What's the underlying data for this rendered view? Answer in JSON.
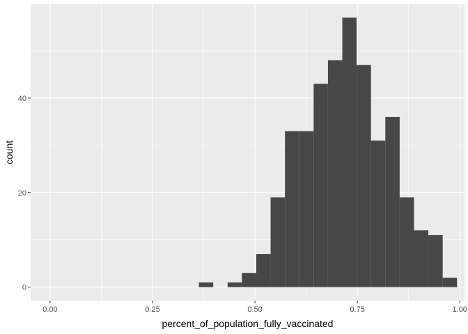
{
  "chart_data": {
    "type": "bar",
    "subtype": "histogram",
    "title": "",
    "xlabel": "percent_of_population_fully_vaccinated",
    "ylabel": "count",
    "xlim": [
      -0.0475,
      1.0115
    ],
    "ylim": [
      -2.85,
      59.85
    ],
    "x_ticks": [
      {
        "value": 0.0,
        "label": "0.00"
      },
      {
        "value": 0.25,
        "label": "0.25"
      },
      {
        "value": 0.5,
        "label": "0.50"
      },
      {
        "value": 0.75,
        "label": "0.75"
      },
      {
        "value": 1.0,
        "label": "1.00"
      }
    ],
    "y_ticks": [
      {
        "value": 0,
        "label": "0"
      },
      {
        "value": 20,
        "label": "20"
      },
      {
        "value": 40,
        "label": "40"
      }
    ],
    "bins": [
      {
        "x0": 0.3632,
        "x1": 0.3982,
        "count": 1
      },
      {
        "x0": 0.3982,
        "x1": 0.4332,
        "count": 0
      },
      {
        "x0": 0.4332,
        "x1": 0.4682,
        "count": 1
      },
      {
        "x0": 0.4682,
        "x1": 0.5032,
        "count": 3
      },
      {
        "x0": 0.5032,
        "x1": 0.5382,
        "count": 7
      },
      {
        "x0": 0.5382,
        "x1": 0.5732,
        "count": 19
      },
      {
        "x0": 0.5732,
        "x1": 0.6082,
        "count": 33
      },
      {
        "x0": 0.6082,
        "x1": 0.6432,
        "count": 33
      },
      {
        "x0": 0.6432,
        "x1": 0.6782,
        "count": 43
      },
      {
        "x0": 0.6782,
        "x1": 0.7132,
        "count": 48
      },
      {
        "x0": 0.7132,
        "x1": 0.7482,
        "count": 57
      },
      {
        "x0": 0.7482,
        "x1": 0.7832,
        "count": 47
      },
      {
        "x0": 0.7832,
        "x1": 0.8182,
        "count": 31
      },
      {
        "x0": 0.8182,
        "x1": 0.8532,
        "count": 36
      },
      {
        "x0": 0.8532,
        "x1": 0.8882,
        "count": 19
      },
      {
        "x0": 0.8882,
        "x1": 0.9232,
        "count": 12
      },
      {
        "x0": 0.9232,
        "x1": 0.9582,
        "count": 11
      },
      {
        "x0": 0.9582,
        "x1": 0.9932,
        "count": 2
      }
    ],
    "grid": true,
    "colors": {
      "panel": "#ebebeb",
      "bar": "#474747",
      "grid": "#ffffff",
      "tick_text": "#4d4d4d",
      "title_text": "#000000"
    }
  }
}
